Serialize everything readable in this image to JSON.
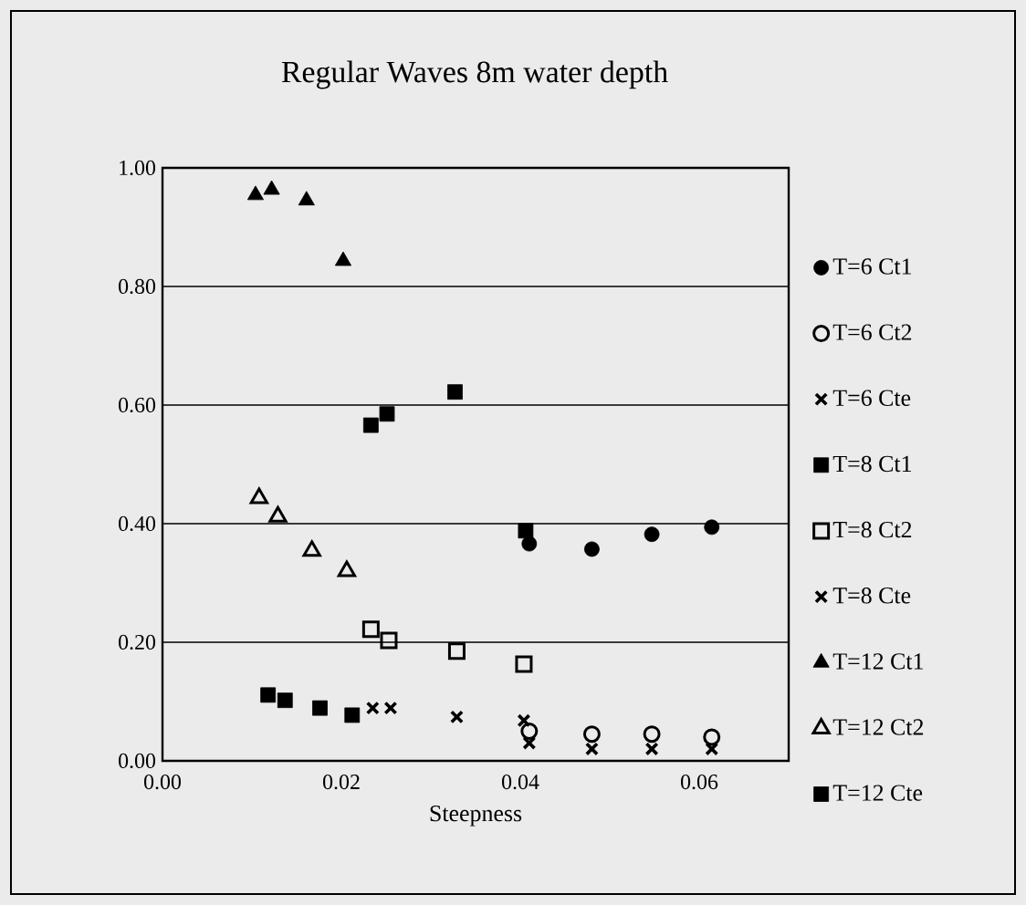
{
  "chart_data": {
    "type": "scatter",
    "title": "Regular Waves 8m water depth",
    "xlabel": "Steepness",
    "xlim": [
      0,
      0.07
    ],
    "ylim": [
      0,
      1
    ],
    "xticks": [
      {
        "value": 0,
        "label": "0.00"
      },
      {
        "value": 0.02,
        "label": "0.02"
      },
      {
        "value": 0.04,
        "label": "0.04"
      },
      {
        "value": 0.06,
        "label": "0.06"
      }
    ],
    "yticks": [
      {
        "value": 0,
        "label": "0.00"
      },
      {
        "value": 0.2,
        "label": "0.20"
      },
      {
        "value": 0.4,
        "label": "0.40"
      },
      {
        "value": 0.6,
        "label": "0.60"
      },
      {
        "value": 0.8,
        "label": "0.80"
      },
      {
        "value": 1,
        "label": "1.00"
      }
    ],
    "grid": "y",
    "legend": "right",
    "series": [
      {
        "name": "T=6 Ct1",
        "color": "#000000",
        "marker": "circle",
        "x": [
          0.041,
          0.048,
          0.0547,
          0.0614
        ],
        "values": [
          0.366,
          0.357,
          0.382,
          0.394
        ]
      },
      {
        "name": "T=6 Ct2",
        "color": "#000000",
        "marker": "circle-open",
        "x": [
          0.041,
          0.048,
          0.0547,
          0.0614
        ],
        "values": [
          0.05,
          0.045,
          0.045,
          0.04
        ]
      },
      {
        "name": "T=6 Cte",
        "color": "#000000",
        "marker": "cross",
        "x": [
          0.041,
          0.048,
          0.0547,
          0.0614
        ],
        "values": [
          0.03,
          0.02,
          0.02,
          0.02
        ]
      },
      {
        "name": "T=8 Ct1",
        "color": "#000000",
        "marker": "square",
        "x": [
          0.0233,
          0.0251,
          0.0327,
          0.0406
        ],
        "values": [
          0.566,
          0.585,
          0.622,
          0.388
        ]
      },
      {
        "name": "T=8 Ct2",
        "color": "#000000",
        "marker": "square-open",
        "x": [
          0.0233,
          0.0253,
          0.0329,
          0.0404
        ],
        "values": [
          0.222,
          0.203,
          0.185,
          0.163
        ]
      },
      {
        "name": "T=8 Cte",
        "color": "#000000",
        "marker": "cross",
        "x": [
          0.0235,
          0.0255,
          0.0329,
          0.0404
        ],
        "values": [
          0.089,
          0.089,
          0.074,
          0.068
        ]
      },
      {
        "name": "T=12 Ct1",
        "color": "#000000",
        "marker": "triangle",
        "x": [
          0.0104,
          0.0122,
          0.0161,
          0.0202
        ],
        "values": [
          0.954,
          0.963,
          0.945,
          0.843
        ]
      },
      {
        "name": "T=12 Ct2",
        "color": "#000000",
        "marker": "triangle-open",
        "x": [
          0.0108,
          0.0129,
          0.0167,
          0.0206
        ],
        "values": [
          0.443,
          0.412,
          0.354,
          0.32
        ]
      },
      {
        "name": "T=12 Cte",
        "color": "#000000",
        "marker": "square",
        "x": [
          0.0118,
          0.0137,
          0.0176,
          0.0212
        ],
        "values": [
          0.111,
          0.102,
          0.089,
          0.077
        ]
      }
    ]
  }
}
